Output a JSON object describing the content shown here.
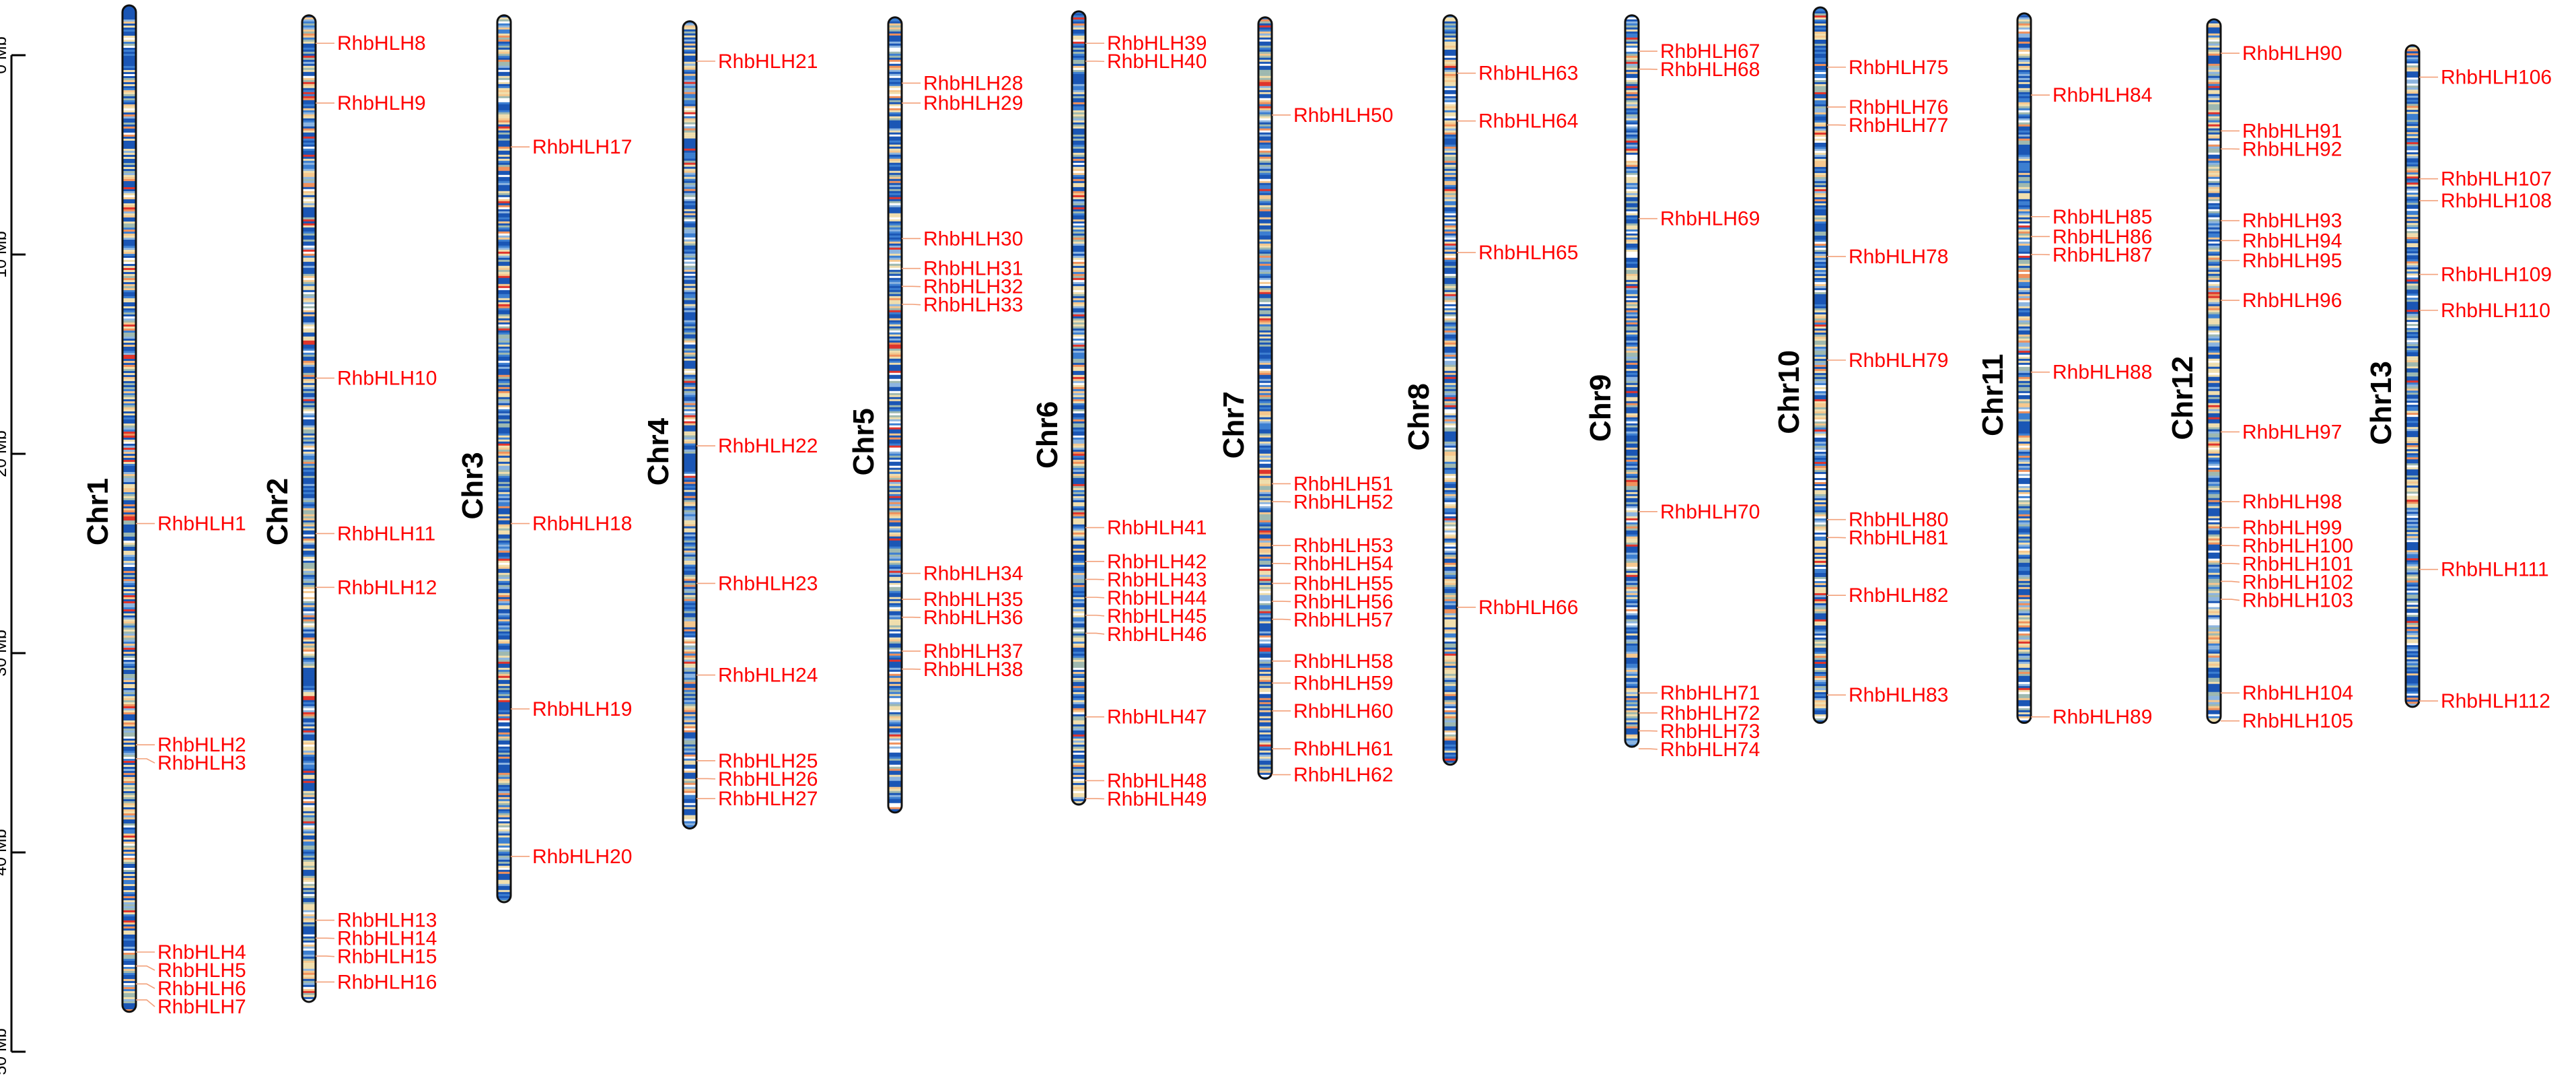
{
  "scale": {
    "unit": "Mb",
    "ticks": [
      {
        "mb": 0,
        "label": "0 Mb"
      },
      {
        "mb": 10,
        "label": "10 Mb"
      },
      {
        "mb": 20,
        "label": "20 Mb"
      },
      {
        "mb": 30,
        "label": "30 Mb"
      },
      {
        "mb": 40,
        "label": "40 Mb"
      },
      {
        "mb": 50,
        "label": "50 Mb"
      }
    ]
  },
  "colors": {
    "gene_label": "#ff0000",
    "connector": "#f2a07a",
    "chromosome_outline": "#111111",
    "density_low": "#1f5bb8",
    "density_mid": "#f3e2b0",
    "density_high": "#e8443a"
  },
  "chromosomes": [
    {
      "name": "Chr1",
      "start_mb": -2.5,
      "length_mb": 50.5,
      "genes": [
        {
          "name": "RhbHLH1",
          "pos_mb": 23.5
        },
        {
          "name": "RhbHLH2",
          "pos_mb": 34.6
        },
        {
          "name": "RhbHLH3",
          "pos_mb": 35.3
        },
        {
          "name": "RhbHLH4",
          "pos_mb": 45.0
        },
        {
          "name": "RhbHLH5",
          "pos_mb": 45.7
        },
        {
          "name": "RhbHLH6",
          "pos_mb": 46.6
        },
        {
          "name": "RhbHLH7",
          "pos_mb": 47.4
        }
      ]
    },
    {
      "name": "Chr2",
      "start_mb": -2.0,
      "length_mb": 49.5,
      "genes": [
        {
          "name": "RhbHLH8",
          "pos_mb": -0.6
        },
        {
          "name": "RhbHLH9",
          "pos_mb": 2.4
        },
        {
          "name": "RhbHLH10",
          "pos_mb": 16.2
        },
        {
          "name": "RhbHLH11",
          "pos_mb": 24.0
        },
        {
          "name": "RhbHLH12",
          "pos_mb": 26.7
        },
        {
          "name": "RhbHLH13",
          "pos_mb": 43.4
        },
        {
          "name": "RhbHLH14",
          "pos_mb": 44.3
        },
        {
          "name": "RhbHLH15",
          "pos_mb": 45.2
        },
        {
          "name": "RhbHLH16",
          "pos_mb": 46.5
        }
      ]
    },
    {
      "name": "Chr3",
      "start_mb": -2.0,
      "length_mb": 44.5,
      "genes": [
        {
          "name": "RhbHLH17",
          "pos_mb": 4.6
        },
        {
          "name": "RhbHLH18",
          "pos_mb": 23.5
        },
        {
          "name": "RhbHLH19",
          "pos_mb": 32.8
        },
        {
          "name": "RhbHLH20",
          "pos_mb": 40.2
        }
      ]
    },
    {
      "name": "Chr4",
      "start_mb": -1.7,
      "length_mb": 40.5,
      "genes": [
        {
          "name": "RhbHLH21",
          "pos_mb": 0.3
        },
        {
          "name": "RhbHLH22",
          "pos_mb": 19.6
        },
        {
          "name": "RhbHLH23",
          "pos_mb": 26.5
        },
        {
          "name": "RhbHLH24",
          "pos_mb": 31.1
        },
        {
          "name": "RhbHLH25",
          "pos_mb": 35.4
        },
        {
          "name": "RhbHLH26",
          "pos_mb": 36.3
        },
        {
          "name": "RhbHLH27",
          "pos_mb": 37.3
        }
      ]
    },
    {
      "name": "Chr5",
      "start_mb": -1.9,
      "length_mb": 39.9,
      "genes": [
        {
          "name": "RhbHLH28",
          "pos_mb": 1.4
        },
        {
          "name": "RhbHLH29",
          "pos_mb": 2.4
        },
        {
          "name": "RhbHLH30",
          "pos_mb": 9.2
        },
        {
          "name": "RhbHLH31",
          "pos_mb": 10.7
        },
        {
          "name": "RhbHLH32",
          "pos_mb": 11.6
        },
        {
          "name": "RhbHLH33",
          "pos_mb": 12.5
        },
        {
          "name": "RhbHLH34",
          "pos_mb": 26.0
        },
        {
          "name": "RhbHLH35",
          "pos_mb": 27.3
        },
        {
          "name": "RhbHLH36",
          "pos_mb": 28.2
        },
        {
          "name": "RhbHLH37",
          "pos_mb": 29.9
        },
        {
          "name": "RhbHLH38",
          "pos_mb": 30.8
        }
      ]
    },
    {
      "name": "Chr6",
      "start_mb": -2.2,
      "length_mb": 39.8,
      "genes": [
        {
          "name": "RhbHLH39",
          "pos_mb": -0.6
        },
        {
          "name": "RhbHLH40",
          "pos_mb": 0.3
        },
        {
          "name": "RhbHLH41",
          "pos_mb": 23.7
        },
        {
          "name": "RhbHLH42",
          "pos_mb": 25.4
        },
        {
          "name": "RhbHLH43",
          "pos_mb": 26.3
        },
        {
          "name": "RhbHLH44",
          "pos_mb": 27.2
        },
        {
          "name": "RhbHLH45",
          "pos_mb": 28.1
        },
        {
          "name": "RhbHLH46",
          "pos_mb": 29.0
        },
        {
          "name": "RhbHLH47",
          "pos_mb": 33.2
        },
        {
          "name": "RhbHLH48",
          "pos_mb": 36.4
        },
        {
          "name": "RhbHLH49",
          "pos_mb": 37.3
        }
      ]
    },
    {
      "name": "Chr7",
      "start_mb": -1.9,
      "length_mb": 38.2,
      "genes": [
        {
          "name": "RhbHLH50",
          "pos_mb": 3.0
        },
        {
          "name": "RhbHLH51",
          "pos_mb": 21.5
        },
        {
          "name": "RhbHLH52",
          "pos_mb": 22.4
        },
        {
          "name": "RhbHLH53",
          "pos_mb": 24.6
        },
        {
          "name": "RhbHLH54",
          "pos_mb": 25.5
        },
        {
          "name": "RhbHLH55",
          "pos_mb": 26.5
        },
        {
          "name": "RhbHLH56",
          "pos_mb": 27.4
        },
        {
          "name": "RhbHLH57",
          "pos_mb": 28.3
        },
        {
          "name": "RhbHLH58",
          "pos_mb": 30.4
        },
        {
          "name": "RhbHLH59",
          "pos_mb": 31.5
        },
        {
          "name": "RhbHLH60",
          "pos_mb": 32.9
        },
        {
          "name": "RhbHLH61",
          "pos_mb": 34.8
        },
        {
          "name": "RhbHLH62",
          "pos_mb": 36.1
        }
      ]
    },
    {
      "name": "Chr8",
      "start_mb": -2.0,
      "length_mb": 37.6,
      "genes": [
        {
          "name": "RhbHLH63",
          "pos_mb": 0.9
        },
        {
          "name": "RhbHLH64",
          "pos_mb": 3.3
        },
        {
          "name": "RhbHLH65",
          "pos_mb": 9.9
        },
        {
          "name": "RhbHLH66",
          "pos_mb": 27.7
        }
      ]
    },
    {
      "name": "Chr9",
      "start_mb": -2.0,
      "length_mb": 36.7,
      "genes": [
        {
          "name": "RhbHLH67",
          "pos_mb": -0.2
        },
        {
          "name": "RhbHLH68",
          "pos_mb": 0.7
        },
        {
          "name": "RhbHLH69",
          "pos_mb": 8.2
        },
        {
          "name": "RhbHLH70",
          "pos_mb": 22.9
        },
        {
          "name": "RhbHLH71",
          "pos_mb": 32.0
        },
        {
          "name": "RhbHLH72",
          "pos_mb": 33.0
        },
        {
          "name": "RhbHLH73",
          "pos_mb": 33.9
        },
        {
          "name": "RhbHLH74",
          "pos_mb": 34.8
        }
      ]
    },
    {
      "name": "Chr10",
      "start_mb": -2.4,
      "length_mb": 35.9,
      "genes": [
        {
          "name": "RhbHLH75",
          "pos_mb": 0.6
        },
        {
          "name": "RhbHLH76",
          "pos_mb": 2.6
        },
        {
          "name": "RhbHLH77",
          "pos_mb": 3.5
        },
        {
          "name": "RhbHLH78",
          "pos_mb": 10.1
        },
        {
          "name": "RhbHLH79",
          "pos_mb": 15.3
        },
        {
          "name": "RhbHLH80",
          "pos_mb": 23.3
        },
        {
          "name": "RhbHLH81",
          "pos_mb": 24.2
        },
        {
          "name": "RhbHLH82",
          "pos_mb": 27.1
        },
        {
          "name": "RhbHLH83",
          "pos_mb": 32.1
        }
      ]
    },
    {
      "name": "Chr11",
      "start_mb": -2.1,
      "length_mb": 35.6,
      "genes": [
        {
          "name": "RhbHLH84",
          "pos_mb": 2.0
        },
        {
          "name": "RhbHLH85",
          "pos_mb": 8.1
        },
        {
          "name": "RhbHLH86",
          "pos_mb": 9.1
        },
        {
          "name": "RhbHLH87",
          "pos_mb": 10.0
        },
        {
          "name": "RhbHLH88",
          "pos_mb": 15.9
        },
        {
          "name": "RhbHLH89",
          "pos_mb": 33.2
        }
      ]
    },
    {
      "name": "Chr12",
      "start_mb": -1.8,
      "length_mb": 35.3,
      "genes": [
        {
          "name": "RhbHLH90",
          "pos_mb": -0.1
        },
        {
          "name": "RhbHLH91",
          "pos_mb": 3.8
        },
        {
          "name": "RhbHLH92",
          "pos_mb": 4.7
        },
        {
          "name": "RhbHLH93",
          "pos_mb": 8.3
        },
        {
          "name": "RhbHLH94",
          "pos_mb": 9.3
        },
        {
          "name": "RhbHLH95",
          "pos_mb": 10.3
        },
        {
          "name": "RhbHLH96",
          "pos_mb": 12.3
        },
        {
          "name": "RhbHLH97",
          "pos_mb": 18.9
        },
        {
          "name": "RhbHLH98",
          "pos_mb": 22.4
        },
        {
          "name": "RhbHLH99",
          "pos_mb": 23.7
        },
        {
          "name": "RhbHLH100",
          "pos_mb": 24.6
        },
        {
          "name": "RhbHLH101",
          "pos_mb": 25.5
        },
        {
          "name": "RhbHLH102",
          "pos_mb": 26.4
        },
        {
          "name": "RhbHLH103",
          "pos_mb": 27.3
        },
        {
          "name": "RhbHLH104",
          "pos_mb": 32.0
        },
        {
          "name": "RhbHLH105",
          "pos_mb": 33.4
        }
      ]
    },
    {
      "name": "Chr13",
      "start_mb": -0.5,
      "length_mb": 33.2,
      "genes": [
        {
          "name": "RhbHLH106",
          "pos_mb": 1.1
        },
        {
          "name": "RhbHLH107",
          "pos_mb": 6.2
        },
        {
          "name": "RhbHLH108",
          "pos_mb": 7.3
        },
        {
          "name": "RhbHLH109",
          "pos_mb": 11.0
        },
        {
          "name": "RhbHLH110",
          "pos_mb": 12.8
        },
        {
          "name": "RhbHLH111",
          "pos_mb": 25.8
        },
        {
          "name": "RhbHLH112",
          "pos_mb": 32.4
        }
      ]
    }
  ]
}
